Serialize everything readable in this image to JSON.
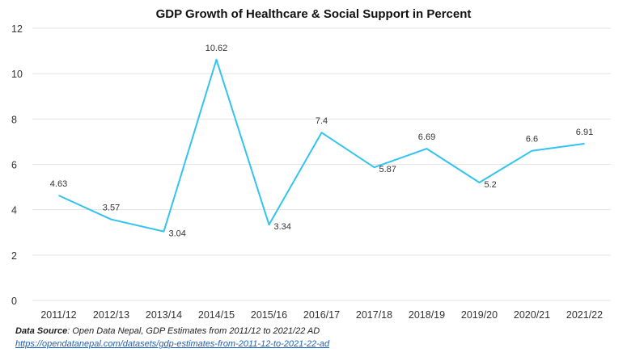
{
  "chart_data": {
    "type": "line",
    "title": "GDP Growth of Healthcare & Social Support in Percent",
    "categories": [
      "2011/12",
      "2012/13",
      "2013/14",
      "2014/15",
      "2015/16",
      "2016/17",
      "2017/18",
      "2018/19",
      "2019/20",
      "2020/21",
      "2021/22"
    ],
    "series": [
      {
        "values": [
          4.63,
          3.57,
          3.04,
          10.62,
          3.34,
          7.4,
          5.87,
          6.69,
          5.2,
          6.6,
          6.91
        ]
      }
    ],
    "data_labels": [
      "4.63",
      "3.57",
      "3.04",
      "10.62",
      "3.34",
      "7.4",
      "5.87",
      "6.69",
      "5.2",
      "6.6",
      "6.91"
    ],
    "ylim": [
      0,
      12
    ],
    "yticks": [
      0,
      2,
      4,
      6,
      8,
      10,
      12
    ],
    "grid": true,
    "line_color": "#33c3f0",
    "grid_color": "#e3e3e3"
  },
  "source": {
    "label": "Data Source",
    "text": ": Open Data Nepal,  GDP Estimates from 2011/12 to 2021/22 AD",
    "url": "https://opendatanepal.com/datasets/gdp-estimates-from-2011-12-to-2021-22-ad"
  }
}
